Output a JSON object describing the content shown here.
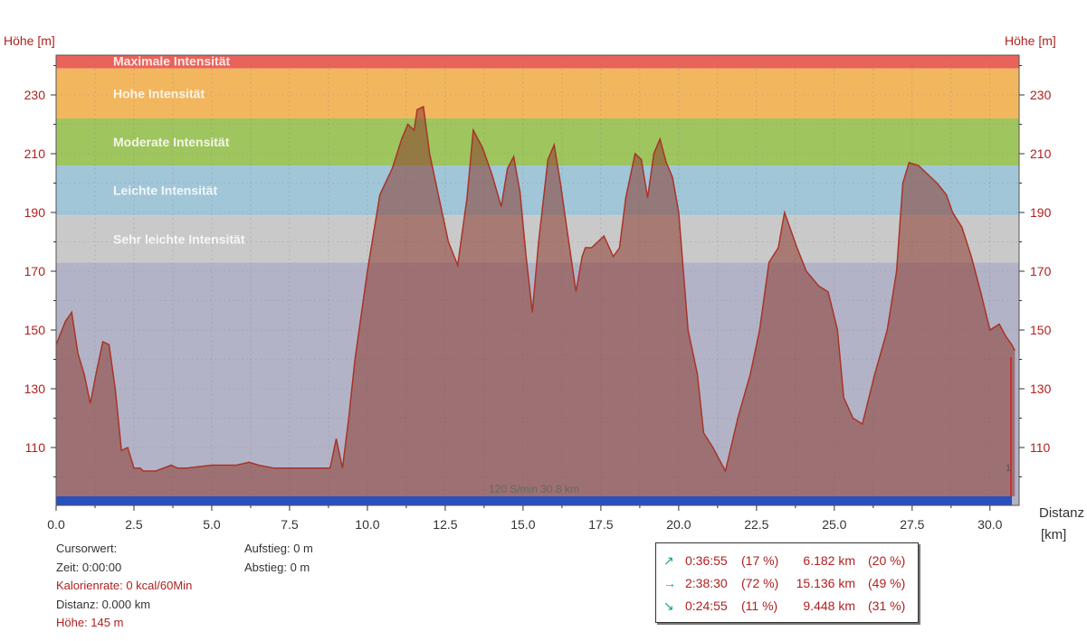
{
  "chart_data": {
    "type": "area",
    "ylabel_left": "Höhe  [m]",
    "ylabel_right": "Höhe  [m]",
    "xlabel_line1": "Distanz",
    "xlabel_line2": "[km]",
    "x_ticks": [
      "0.0",
      "2.5",
      "5.0",
      "7.5",
      "10.0",
      "12.5",
      "15.0",
      "17.5",
      "20.0",
      "22.5",
      "25.0",
      "27.5",
      "30.0"
    ],
    "y_ticks": [
      "110",
      "130",
      "150",
      "170",
      "190",
      "210",
      "230"
    ],
    "xlim": [
      0,
      31.0
    ],
    "ylim": [
      90,
      244
    ],
    "grid": true,
    "zones": [
      {
        "label": "Maximale Intensität",
        "from": 239,
        "to": 244,
        "color": "#e8635a"
      },
      {
        "label": "Hohe Intensität",
        "from": 222,
        "to": 239,
        "color": "#f2b65e"
      },
      {
        "label": "Moderate Intensität",
        "from": 206,
        "to": 222,
        "color": "#9fc55e"
      },
      {
        "label": "Leichte Intensität",
        "from": 189,
        "to": 206,
        "color": "#a1c6d8"
      },
      {
        "label": "Sehr leichte Intensität",
        "from": 173,
        "to": 189,
        "color": "#c9c9c9"
      },
      {
        "label": "",
        "from": 90,
        "to": 173,
        "color": "#b3b3c7"
      }
    ],
    "bottom_label": "120 S/min 30.8 km",
    "series": [
      {
        "color": "#a83428",
        "x": [
          0.0,
          0.3,
          0.5,
          0.7,
          0.9,
          1.1,
          1.3,
          1.5,
          1.7,
          1.9,
          2.1,
          2.3,
          2.5,
          2.7,
          2.8,
          3.2,
          3.7,
          3.9,
          4.2,
          5.0,
          5.5,
          5.8,
          6.2,
          6.5,
          7.0,
          8.0,
          8.8,
          9.0,
          9.2,
          9.4,
          9.6,
          10.0,
          10.4,
          10.8,
          11.1,
          11.3,
          11.5,
          11.6,
          11.8,
          12.0,
          12.3,
          12.6,
          12.9,
          13.2,
          13.4,
          13.7,
          14.0,
          14.3,
          14.5,
          14.7,
          14.9,
          15.1,
          15.3,
          15.5,
          15.8,
          16.0,
          16.2,
          16.4,
          16.7,
          16.9,
          17.0,
          17.2,
          17.6,
          17.9,
          18.1,
          18.3,
          18.6,
          18.8,
          19.0,
          19.2,
          19.4,
          19.6,
          19.8,
          20.0,
          20.3,
          20.6,
          20.8,
          21.1,
          21.5,
          21.9,
          22.3,
          22.6,
          22.9,
          23.2,
          23.4,
          23.8,
          24.1,
          24.5,
          24.8,
          25.1,
          25.3,
          25.6,
          25.9,
          26.3,
          26.7,
          27.0,
          27.2,
          27.4,
          27.7,
          28.0,
          28.3,
          28.6,
          28.8,
          29.1,
          29.4,
          29.7,
          30.0,
          30.3,
          30.5,
          30.7,
          30.8
        ],
        "y": [
          145,
          153,
          156,
          142,
          135,
          125,
          136,
          146,
          145,
          130,
          109,
          110,
          103,
          103,
          102,
          102,
          104,
          103,
          103,
          104,
          104,
          104,
          105,
          104,
          103,
          103,
          103,
          113,
          103,
          120,
          140,
          170,
          196,
          205,
          215,
          220,
          218,
          225,
          226,
          210,
          195,
          180,
          172,
          195,
          218,
          212,
          203,
          192,
          205,
          209,
          197,
          175,
          156,
          180,
          208,
          213,
          200,
          185,
          163,
          175,
          178,
          178,
          182,
          175,
          178,
          195,
          210,
          208,
          195,
          210,
          215,
          207,
          202,
          190,
          150,
          135,
          115,
          110,
          102,
          120,
          135,
          150,
          173,
          178,
          190,
          178,
          170,
          165,
          163,
          150,
          127,
          120,
          118,
          135,
          150,
          170,
          200,
          207,
          206,
          203,
          200,
          196,
          190,
          185,
          175,
          163,
          150,
          152,
          148,
          145,
          143
        ]
      }
    ],
    "marker_label": "1"
  },
  "cursor": {
    "title": "Cursorwert:",
    "time": "Zeit: 0:00:00",
    "calorie": "Kalorienrate: 0 kcal/60Min",
    "distance": "Distanz: 0.000 km",
    "altitude": "Höhe:  145 m",
    "ascent": "Aufstieg: 0 m",
    "descent": "Abstieg: 0 m"
  },
  "stats": [
    {
      "arrow": "↗",
      "time": "0:36:55",
      "time_pct": "(17 %)",
      "dist": "6.182 km",
      "dist_pct": "(20 %)"
    },
    {
      "arrow": "→",
      "time": "2:38:30",
      "time_pct": "(72 %)",
      "dist": "15.136 km",
      "dist_pct": "(49 %)"
    },
    {
      "arrow": "↘",
      "time": "0:24:55",
      "time_pct": "(11 %)",
      "dist": "9.448 km",
      "dist_pct": "(31 %)"
    }
  ]
}
